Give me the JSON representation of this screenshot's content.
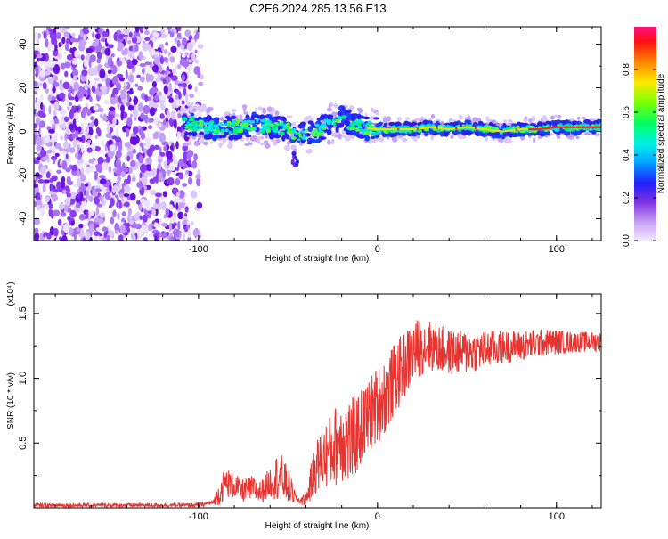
{
  "title": "C2E6.2024.285.13.56.E13",
  "chart_data": [
    {
      "type": "heatmap",
      "xlabel": "Height of straight line (km)",
      "ylabel": "Frequency (Hz)",
      "xlim": [
        -192,
        125
      ],
      "ylim": [
        -50,
        48
      ],
      "xticks": [
        -100,
        0,
        100
      ],
      "xtick_labels": [
        "-100",
        "0",
        "100"
      ],
      "yticks": [
        40,
        20,
        0,
        -20,
        -40
      ],
      "ytick_labels": [
        "40",
        "20",
        "0",
        "-20",
        "-40"
      ],
      "colorbar": {
        "label": "Normalized spectral amplitude",
        "range": [
          0,
          1
        ],
        "ticks": [
          0.0,
          0.2,
          0.4,
          0.6,
          0.8
        ],
        "tick_labels": [
          "0.0",
          "0.2",
          "0.4",
          "0.6",
          "0.8"
        ]
      },
      "regions": [
        {
          "name": "noise",
          "x": [
            -192,
            -98
          ],
          "f": [
            -50,
            48
          ],
          "amplitude": 0.2
        },
        {
          "name": "signal band",
          "x": [
            -108,
            125
          ],
          "center_f": 1,
          "amplitude": 0.95
        }
      ],
      "band_center": {
        "x": [
          -108,
          -100,
          -90,
          -80,
          -70,
          -60,
          -50,
          -45,
          -40,
          -35,
          -30,
          -20,
          -15,
          -10,
          0,
          10,
          20,
          30,
          40,
          50,
          60,
          70,
          80,
          90,
          100,
          110,
          125
        ],
        "f": [
          4,
          3,
          1,
          2,
          3,
          2,
          1,
          -2,
          -1,
          0,
          2,
          6,
          4,
          2,
          1,
          1,
          1,
          2,
          1,
          2,
          1,
          0,
          1,
          1,
          2,
          2,
          2
        ]
      }
    },
    {
      "type": "line",
      "xlabel": "Height of straight line (km)",
      "ylabel": "SNR (10 * v/v)",
      "y_multiplier": "(x10⁴)",
      "xlim": [
        -192,
        125
      ],
      "ylim": [
        0,
        1.65
      ],
      "xticks": [
        -100,
        0,
        100
      ],
      "xtick_labels": [
        "-100",
        "0",
        "100"
      ],
      "yticks": [
        0.5,
        1.0,
        1.5
      ],
      "ytick_labels": [
        "0.5",
        "1.0",
        "1.5"
      ],
      "color": "#e8332f",
      "x": [
        -192,
        -150,
        -100,
        -92,
        -88,
        -85,
        -80,
        -75,
        -70,
        -65,
        -60,
        -55,
        -50,
        -45,
        -40,
        -37,
        -35,
        -30,
        -25,
        -20,
        -15,
        -10,
        -5,
        0,
        5,
        10,
        15,
        20,
        25,
        30,
        40,
        50,
        60,
        70,
        80,
        90,
        100,
        110,
        125
      ],
      "mean": [
        0.02,
        0.02,
        0.02,
        0.04,
        0.12,
        0.2,
        0.17,
        0.13,
        0.15,
        0.12,
        0.2,
        0.25,
        0.17,
        0.06,
        0.06,
        0.2,
        0.3,
        0.4,
        0.45,
        0.55,
        0.5,
        0.6,
        0.7,
        0.8,
        0.88,
        1.0,
        1.1,
        1.2,
        1.25,
        1.25,
        1.2,
        1.2,
        1.22,
        1.24,
        1.25,
        1.27,
        1.28,
        1.28,
        1.28
      ],
      "amplitude": [
        0.015,
        0.015,
        0.015,
        0.02,
        0.1,
        0.12,
        0.1,
        0.09,
        0.1,
        0.09,
        0.12,
        0.2,
        0.14,
        0.03,
        0.05,
        0.15,
        0.2,
        0.25,
        0.3,
        0.35,
        0.35,
        0.3,
        0.3,
        0.3,
        0.3,
        0.28,
        0.26,
        0.25,
        0.22,
        0.2,
        0.18,
        0.17,
        0.15,
        0.13,
        0.12,
        0.11,
        0.1,
        0.08,
        0.08
      ]
    }
  ]
}
